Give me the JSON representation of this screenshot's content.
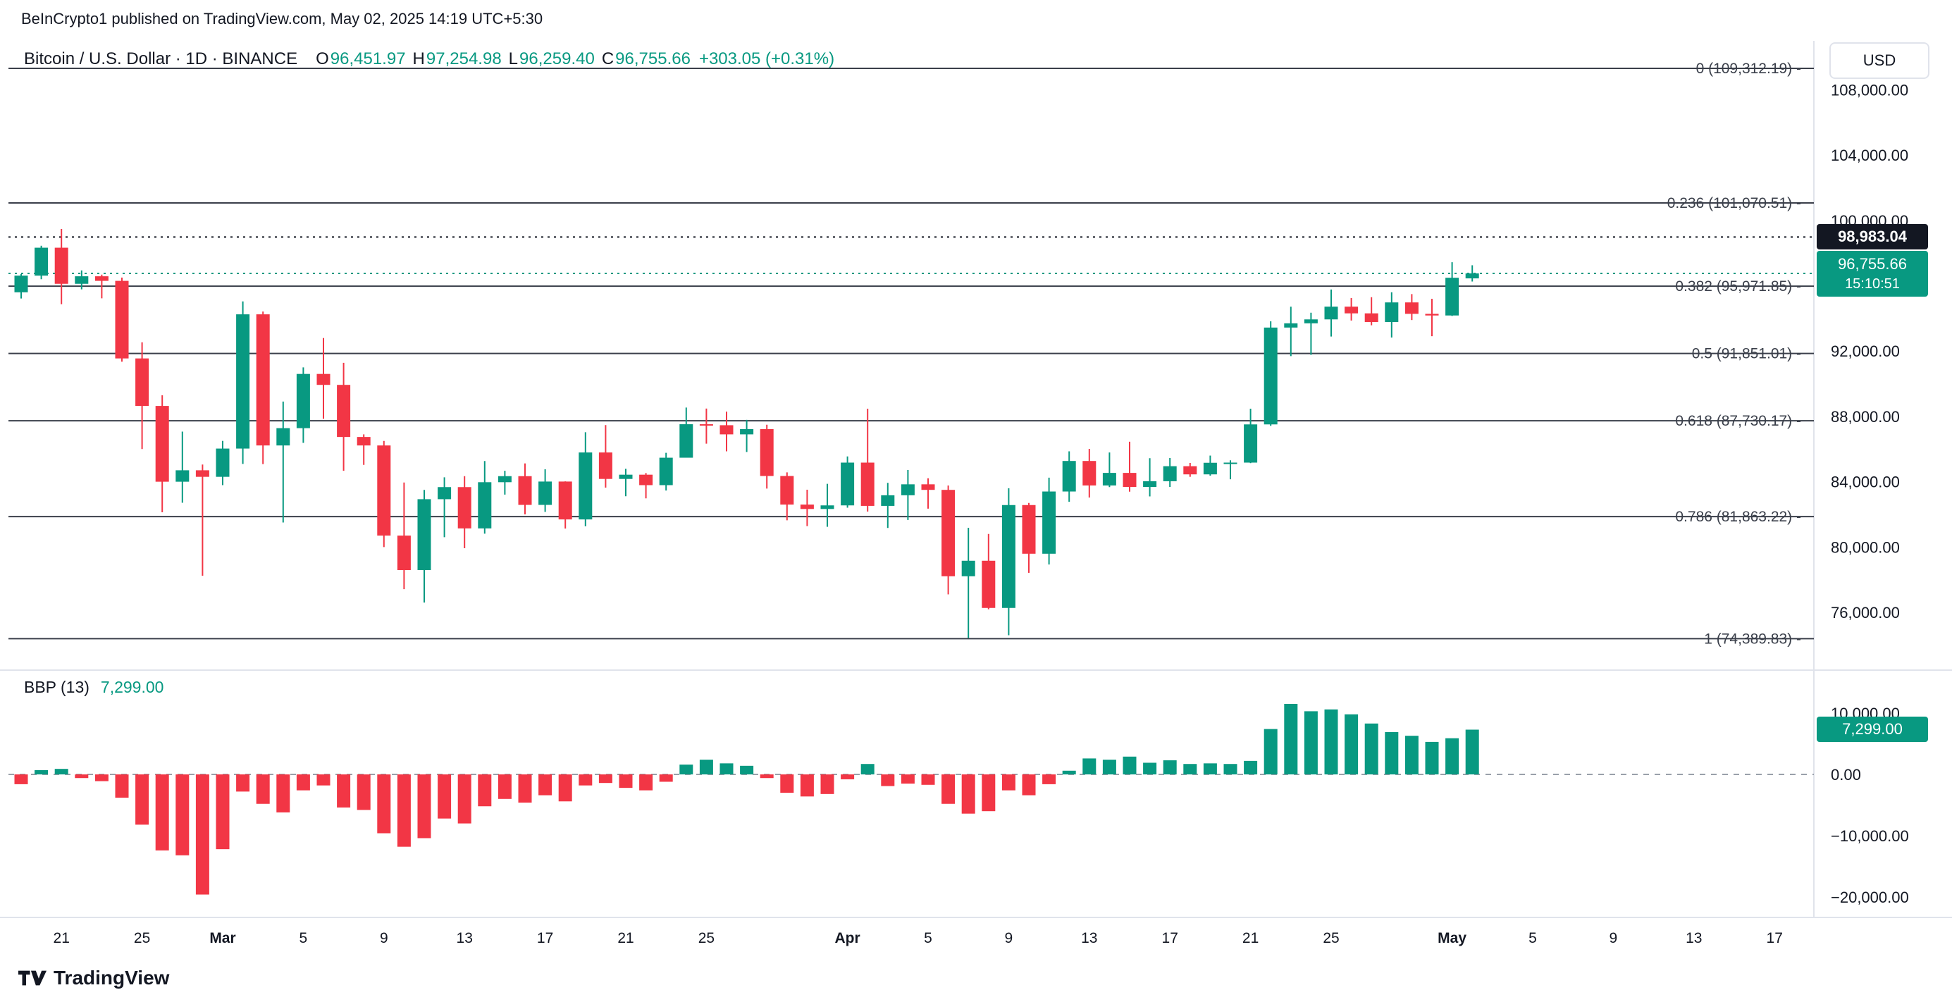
{
  "attribution": "BeInCrypto1 published on TradingView.com, May 02, 2025 14:19 UTC+5:30",
  "currency_button": "USD",
  "symbol": {
    "name": "Bitcoin / U.S. Dollar · 1D · BINANCE",
    "ohlc": {
      "o_label": "O",
      "o": "96,451.97",
      "h_label": "H",
      "h": "97,254.98",
      "l_label": "L",
      "l": "96,259.40",
      "c_label": "C",
      "c": "96,755.66",
      "change": "+303.05 (+0.31%)"
    }
  },
  "footer": {
    "logo_text": "TradingView"
  },
  "colors": {
    "up": "#089981",
    "down": "#f23645",
    "text": "#131722",
    "fib": "#3a3f4a",
    "separator": "#e0e3eb",
    "zero_line": "#9aa0aa",
    "axis_text": "#131722"
  },
  "chart_data": [
    {
      "type": "candlestick",
      "title": "Bitcoin / U.S. Dollar · 1D · BINANCE",
      "year": 2025,
      "ylim": [
        73800,
        109400
      ],
      "fib_levels": [
        {
          "level": "0",
          "price": 109312.19,
          "label": "0 (109,312.19) -"
        },
        {
          "level": "0.236",
          "price": 101070.51,
          "label": "0.236 (101,070.51) -"
        },
        {
          "level": "0.382",
          "price": 95971.85,
          "label": "0.382 (95,971.85) -"
        },
        {
          "level": "0.5",
          "price": 91851.01,
          "label": "0.5 (91,851.01) -"
        },
        {
          "level": "0.618",
          "price": 87730.17,
          "label": "0.618 (87,730.17) -"
        },
        {
          "level": "0.786",
          "price": 81863.22,
          "label": "0.786 (81,863.22) -"
        },
        {
          "level": "1",
          "price": 74389.83,
          "label": "1 (74,389.83) -"
        }
      ],
      "price_lines": [
        {
          "price": 98983.04,
          "label": "98,983.04",
          "style": "black"
        },
        {
          "price": 96755.66,
          "label": "96,755.66",
          "countdown": "15:10:51",
          "style": "green"
        }
      ],
      "y_ticks": [
        [
          108000,
          "108,000.00"
        ],
        [
          104000,
          "104,000.00"
        ],
        [
          100000,
          "100,000.00"
        ],
        [
          92000,
          "92,000.00"
        ],
        [
          88000,
          "88,000.00"
        ],
        [
          84000,
          "84,000.00"
        ],
        [
          80000,
          "80,000.00"
        ],
        [
          76000,
          "76,000.00"
        ]
      ],
      "x_ticks": [
        [
          2,
          "21",
          0
        ],
        [
          6,
          "25",
          0
        ],
        [
          10,
          "Mar",
          1
        ],
        [
          14,
          "5",
          0
        ],
        [
          18,
          "9",
          0
        ],
        [
          22,
          "13",
          0
        ],
        [
          26,
          "17",
          0
        ],
        [
          30,
          "21",
          0
        ],
        [
          34,
          "25",
          0
        ],
        [
          41,
          "Apr",
          1
        ],
        [
          45,
          "5",
          0
        ],
        [
          49,
          "9",
          0
        ],
        [
          53,
          "13",
          0
        ],
        [
          57,
          "17",
          0
        ],
        [
          61,
          "21",
          0
        ],
        [
          65,
          "25",
          0
        ],
        [
          71,
          "May",
          1
        ],
        [
          75,
          "5",
          0
        ],
        [
          79,
          "9",
          0
        ],
        [
          83,
          "13",
          0
        ],
        [
          87,
          "17",
          0
        ]
      ],
      "candles": [
        [
          "02-19",
          95600,
          96720,
          95220,
          96620
        ],
        [
          "02-20",
          96620,
          98450,
          96400,
          98330
        ],
        [
          "02-21",
          98330,
          99475,
          94870,
          96120
        ],
        [
          "02-22",
          96120,
          96940,
          95780,
          96580
        ],
        [
          "02-23",
          96580,
          96680,
          95230,
          96300
        ],
        [
          "02-24",
          96300,
          96500,
          91350,
          91550
        ],
        [
          "02-25",
          91550,
          92540,
          86000,
          88640
        ],
        [
          "02-26",
          88640,
          89290,
          82130,
          84000
        ],
        [
          "02-27",
          84000,
          87070,
          82710,
          84700
        ],
        [
          "02-28",
          84700,
          85050,
          78240,
          84300
        ],
        [
          "03-01",
          84300,
          86500,
          83790,
          86030
        ],
        [
          "03-02",
          86030,
          95040,
          85090,
          94250
        ],
        [
          "03-03",
          94250,
          94420,
          85080,
          86220
        ],
        [
          "03-04",
          86220,
          88910,
          81500,
          87280
        ],
        [
          "03-05",
          87280,
          91000,
          86380,
          90600
        ],
        [
          "03-06",
          90600,
          92800,
          87850,
          89930
        ],
        [
          "03-07",
          89930,
          91280,
          84670,
          86740
        ],
        [
          "03-08",
          86740,
          86900,
          85030,
          86220
        ],
        [
          "03-09",
          86220,
          86500,
          80000,
          80700
        ],
        [
          "03-10",
          80700,
          83950,
          77420,
          78590
        ],
        [
          "03-11",
          78590,
          83500,
          76600,
          82930
        ],
        [
          "03-12",
          82930,
          84270,
          80600,
          83670
        ],
        [
          "03-13",
          83670,
          84340,
          79930,
          81140
        ],
        [
          "03-14",
          81140,
          85270,
          80820,
          83970
        ],
        [
          "03-15",
          83970,
          84670,
          83210,
          84340
        ],
        [
          "03-16",
          84340,
          85120,
          82000,
          82580
        ],
        [
          "03-17",
          82580,
          84760,
          82150,
          84010
        ],
        [
          "03-18",
          84010,
          84020,
          81130,
          81690
        ],
        [
          "03-19",
          81690,
          87030,
          81270,
          85790
        ],
        [
          "03-20",
          85790,
          87470,
          83640,
          84170
        ],
        [
          "03-21",
          84170,
          84790,
          83110,
          84430
        ],
        [
          "03-22",
          84430,
          84530,
          82980,
          83790
        ],
        [
          "03-23",
          83790,
          85770,
          83460,
          85470
        ],
        [
          "03-24",
          85470,
          88540,
          85470,
          87520
        ],
        [
          "03-25",
          87520,
          88480,
          86330,
          87460
        ],
        [
          "03-26",
          87460,
          88290,
          85860,
          86900
        ],
        [
          "03-27",
          86900,
          87790,
          85820,
          87220
        ],
        [
          "03-28",
          87220,
          87490,
          83580,
          84350
        ],
        [
          "03-29",
          84350,
          84570,
          81640,
          82600
        ],
        [
          "03-30",
          82600,
          83510,
          81280,
          82330
        ],
        [
          "03-31",
          82330,
          83870,
          81240,
          82550
        ],
        [
          "04-01",
          82550,
          85550,
          82410,
          85170
        ],
        [
          "04-02",
          85170,
          88470,
          82170,
          82520
        ],
        [
          "04-03",
          82520,
          83930,
          81170,
          83170
        ],
        [
          "04-04",
          83170,
          84720,
          81660,
          83840
        ],
        [
          "04-05",
          83840,
          84210,
          82350,
          83500
        ],
        [
          "04-06",
          83500,
          83770,
          77100,
          78210
        ],
        [
          "04-07",
          78210,
          81180,
          74430,
          79160
        ],
        [
          "04-08",
          79160,
          80800,
          76190,
          76270
        ],
        [
          "04-09",
          76270,
          83600,
          74600,
          82570
        ],
        [
          "04-10",
          82570,
          82700,
          78420,
          79590
        ],
        [
          "04-11",
          79590,
          84250,
          78930,
          83400
        ],
        [
          "04-12",
          83400,
          85860,
          82770,
          85270
        ],
        [
          "04-13",
          85270,
          86010,
          83030,
          83770
        ],
        [
          "04-14",
          83770,
          85790,
          83670,
          84540
        ],
        [
          "04-15",
          84540,
          86450,
          83390,
          83680
        ],
        [
          "04-16",
          83680,
          85440,
          83100,
          84030
        ],
        [
          "04-17",
          84030,
          85450,
          83680,
          84950
        ],
        [
          "04-18",
          84950,
          85150,
          84300,
          84450
        ],
        [
          "04-19",
          84450,
          85600,
          84370,
          85160
        ],
        [
          "04-20",
          85160,
          85310,
          84150,
          85170
        ],
        [
          "04-21",
          85170,
          88470,
          85140,
          87510
        ],
        [
          "04-22",
          87510,
          93820,
          87420,
          93440
        ],
        [
          "04-23",
          93440,
          94720,
          91690,
          93700
        ],
        [
          "04-24",
          93700,
          94350,
          91770,
          93940
        ],
        [
          "04-25",
          93940,
          95770,
          92890,
          94720
        ],
        [
          "04-26",
          94720,
          95250,
          93870,
          94310
        ],
        [
          "04-27",
          94310,
          95300,
          93580,
          93780
        ],
        [
          "04-28",
          93780,
          95600,
          92830,
          94980
        ],
        [
          "04-29",
          94980,
          95490,
          93900,
          94280
        ],
        [
          "04-30",
          94280,
          95200,
          92910,
          94180
        ],
        [
          "05-01",
          94180,
          97440,
          94150,
          96490
        ],
        [
          "05-02",
          96451.97,
          97254.98,
          96259.4,
          96755.66
        ]
      ]
    },
    {
      "type": "bar",
      "title": "BBP (13)",
      "value_label": "7,299.00",
      "badge_label": "7,299.00",
      "last_value": 7299,
      "ylim": [
        -23300,
        17000
      ],
      "y_ticks": [
        [
          10000,
          "10,000.00"
        ],
        [
          0,
          "0.00"
        ],
        [
          -10000,
          "−10,000.00"
        ],
        [
          -20000,
          "−20,000.00"
        ]
      ],
      "values": [
        -1600,
        700,
        900,
        -600,
        -1100,
        -3800,
        -8200,
        -12400,
        -13200,
        -19600,
        -12200,
        -2800,
        -4800,
        -6200,
        -2600,
        -1800,
        -5400,
        -5800,
        -9600,
        -11800,
        -10400,
        -7200,
        -8000,
        -5200,
        -4000,
        -4600,
        -3400,
        -4400,
        -1800,
        -1400,
        -2200,
        -2600,
        -1200,
        1600,
        2400,
        1800,
        1400,
        -600,
        -3000,
        -3600,
        -3200,
        -800,
        1700,
        -1900,
        -1500,
        -1700,
        -4800,
        -6400,
        -6000,
        -2600,
        -3400,
        -1600,
        600,
        2600,
        2400,
        2900,
        1900,
        2300,
        1700,
        1800,
        1700,
        2200,
        7400,
        11500,
        10300,
        10600,
        9800,
        8300,
        6900,
        6300,
        5300,
        5900,
        7299
      ]
    }
  ]
}
